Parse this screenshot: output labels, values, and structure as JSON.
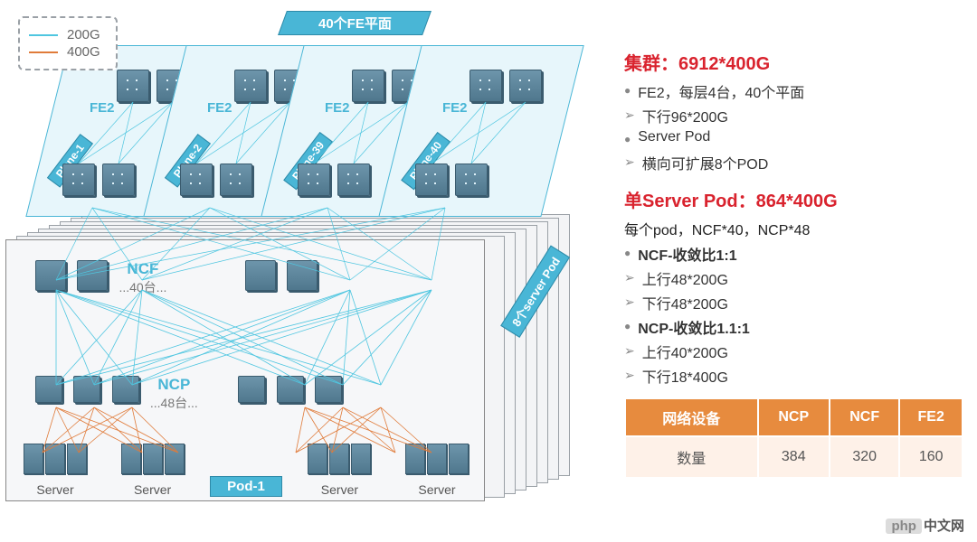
{
  "colors": {
    "cyan": "#49b6d6",
    "cyan_fill": "#e7f6fb",
    "line_200g": "#4fc6e0",
    "line_400g": "#e07b3a",
    "grey_border": "#9aa0a6",
    "red": "#d9232e",
    "table_header": "#e78b3e",
    "table_cell": "#fef1e8"
  },
  "legend": {
    "l1": "200G",
    "l2": "400G"
  },
  "top_banner": "40个FE平面",
  "side_banner": "8个server Pod",
  "planes": [
    {
      "tag": "Plane-1",
      "label": "FE2",
      "count": "4台"
    },
    {
      "tag": "Plane-2",
      "label": "FE2",
      "count": "4台"
    },
    {
      "tag": "Plane-39",
      "label": "FE2",
      "count": "4台"
    },
    {
      "tag": "Plane-40",
      "label": "FE2",
      "count": "4台"
    }
  ],
  "pod": {
    "ncf_label": "NCF",
    "ncf_sub": "...40台...",
    "ncp_label": "NCP",
    "ncp_sub": "...48台...",
    "server_label": "Server",
    "pod_tag": "Pod-1"
  },
  "right": {
    "h1": "集群：6912*400G",
    "b1": [
      {
        "t": "dot",
        "txt": "FE2，每层4台，40个平面"
      },
      {
        "t": "arr",
        "txt": "下行96*200G"
      },
      {
        "t": "dot",
        "txt": "Server Pod"
      },
      {
        "t": "arr",
        "txt": "横向可扩展8个POD"
      }
    ],
    "h2": "单Server Pod：864*400G",
    "desc2": "每个pod，NCF*40，NCP*48",
    "b2": [
      {
        "t": "dot",
        "txt": "NCF-收敛比1:1",
        "bold": true
      },
      {
        "t": "arr",
        "txt": "上行48*200G"
      },
      {
        "t": "arr",
        "txt": "下行48*200G"
      },
      {
        "t": "dot",
        "txt": "NCP-收敛比1.1:1",
        "bold": true
      },
      {
        "t": "arr",
        "txt": "上行40*200G"
      },
      {
        "t": "arr",
        "txt": "下行18*400G"
      }
    ]
  },
  "table": {
    "headers": [
      "网络设备",
      "NCP",
      "NCF",
      "FE2"
    ],
    "row": [
      "数量",
      "384",
      "320",
      "160"
    ]
  },
  "watermark": {
    "a": "php",
    "b": "中文网"
  }
}
